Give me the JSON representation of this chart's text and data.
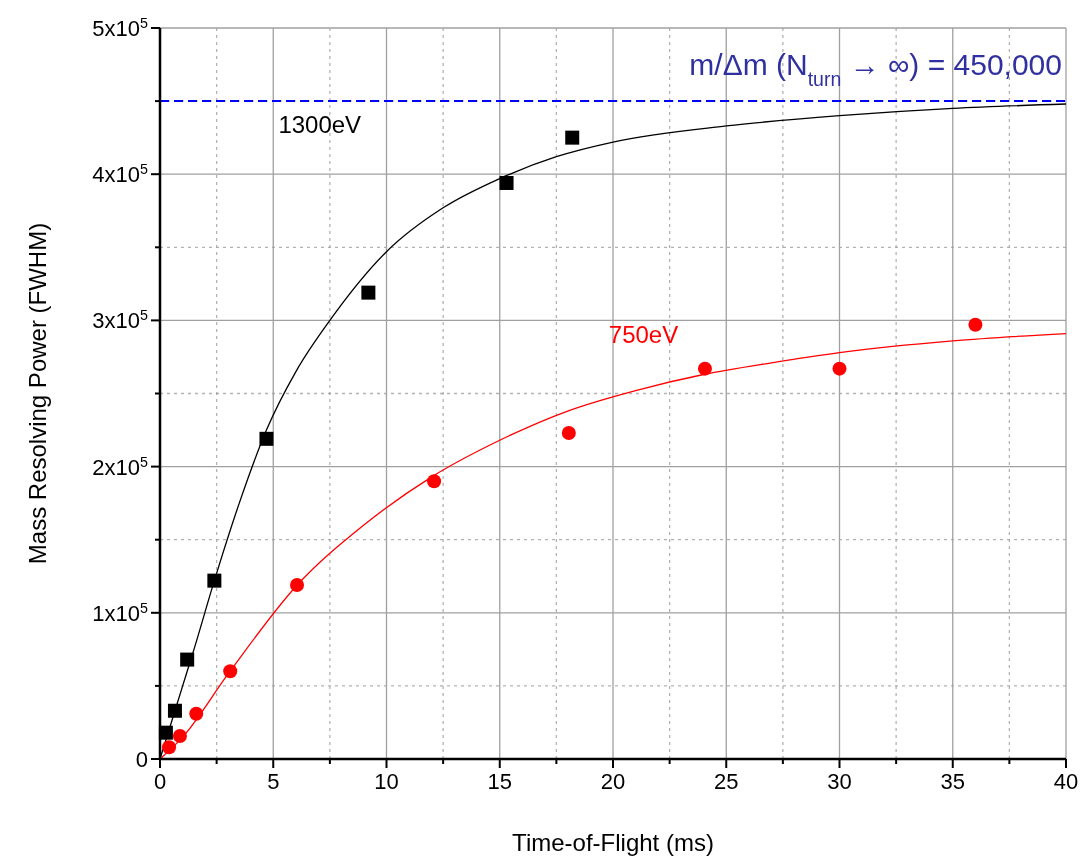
{
  "chart_data": {
    "type": "scatter",
    "xlabel": "Time-of-Flight (ms)",
    "ylabel": "Mass Resolving Power (FWHM)",
    "xlim": [
      0,
      40
    ],
    "ylim": [
      0,
      500000
    ],
    "xticks": [
      0,
      {
        "value": 2.5,
        "label": null
      },
      5,
      {
        "value": 7.5,
        "label": null
      },
      10,
      {
        "value": 12.5,
        "label": null
      },
      15,
      {
        "value": 17.5,
        "label": null
      },
      20,
      {
        "value": 22.5,
        "label": null
      },
      25,
      {
        "value": 27.5,
        "label": null
      },
      30,
      {
        "value": 32.5,
        "label": null
      },
      35,
      {
        "value": 37.5,
        "label": null
      },
      40
    ],
    "yticks": [
      0,
      {
        "value": 50000,
        "label": null
      },
      {
        "value": 100000,
        "label": "1x10$^{5}$"
      },
      {
        "value": 150000,
        "label": null
      },
      {
        "value": 200000,
        "label": "2x10$^{5}$"
      },
      {
        "value": 250000,
        "label": null
      },
      {
        "value": 300000,
        "label": "3x10$^{5}$"
      },
      {
        "value": 350000,
        "label": null
      },
      {
        "value": 400000,
        "label": "4x10$^{5}$"
      },
      {
        "value": 450000,
        "label": null
      },
      {
        "value": 500000,
        "label": "5x10$^{5}$"
      }
    ],
    "grid": true,
    "ref_lines": [
      {
        "axis": "y",
        "value": 450000,
        "label": "m/Δm (N$_{turn}$ → ∞) = 450,000",
        "color": "#0000ff",
        "line_style": "dashed"
      }
    ],
    "series": [
      {
        "type": "line",
        "color": "#000000",
        "marker": "none",
        "x": [
          0,
          0.5,
          1,
          1.5,
          2.4,
          3.5,
          4.7,
          6,
          7.5,
          10,
          12.5,
          15,
          17.5,
          20,
          25,
          30,
          35,
          40
        ],
        "values": [
          0,
          25000,
          50000,
          75000,
          122000,
          175000,
          225000,
          265000,
          300000,
          347000,
          377000,
          397000,
          412000,
          422000,
          433000,
          440000,
          445000,
          448000
        ]
      },
      {
        "type": "line",
        "color": "#ff0000",
        "marker": "none",
        "x": [
          0,
          1,
          3,
          6,
          9,
          12,
          15,
          18,
          21,
          24,
          27,
          30,
          35,
          40
        ],
        "values": [
          0,
          15000,
          58000,
          118000,
          160000,
          193000,
          218000,
          238000,
          252000,
          263000,
          271000,
          278000,
          286000,
          291000
        ]
      },
      {
        "name": "1300eV",
        "color": "#000000",
        "marker": "square",
        "x": [
          0.26,
          0.66,
          1.2,
          2.4,
          4.7,
          9.2,
          15.3,
          18.2
        ],
        "values": [
          18000,
          33000,
          68000,
          122000,
          219000,
          319000,
          394000,
          425000
        ]
      },
      {
        "name": "750eV",
        "color": "#ff0000",
        "marker": "circle",
        "x": [
          0.4,
          0.88,
          1.6,
          3.1,
          6.05,
          12.1,
          18.05,
          24.06,
          30,
          36
        ],
        "values": [
          8000,
          15700,
          31000,
          60000,
          119000,
          190000,
          223000,
          267000,
          267000,
          297000
        ]
      }
    ]
  }
}
